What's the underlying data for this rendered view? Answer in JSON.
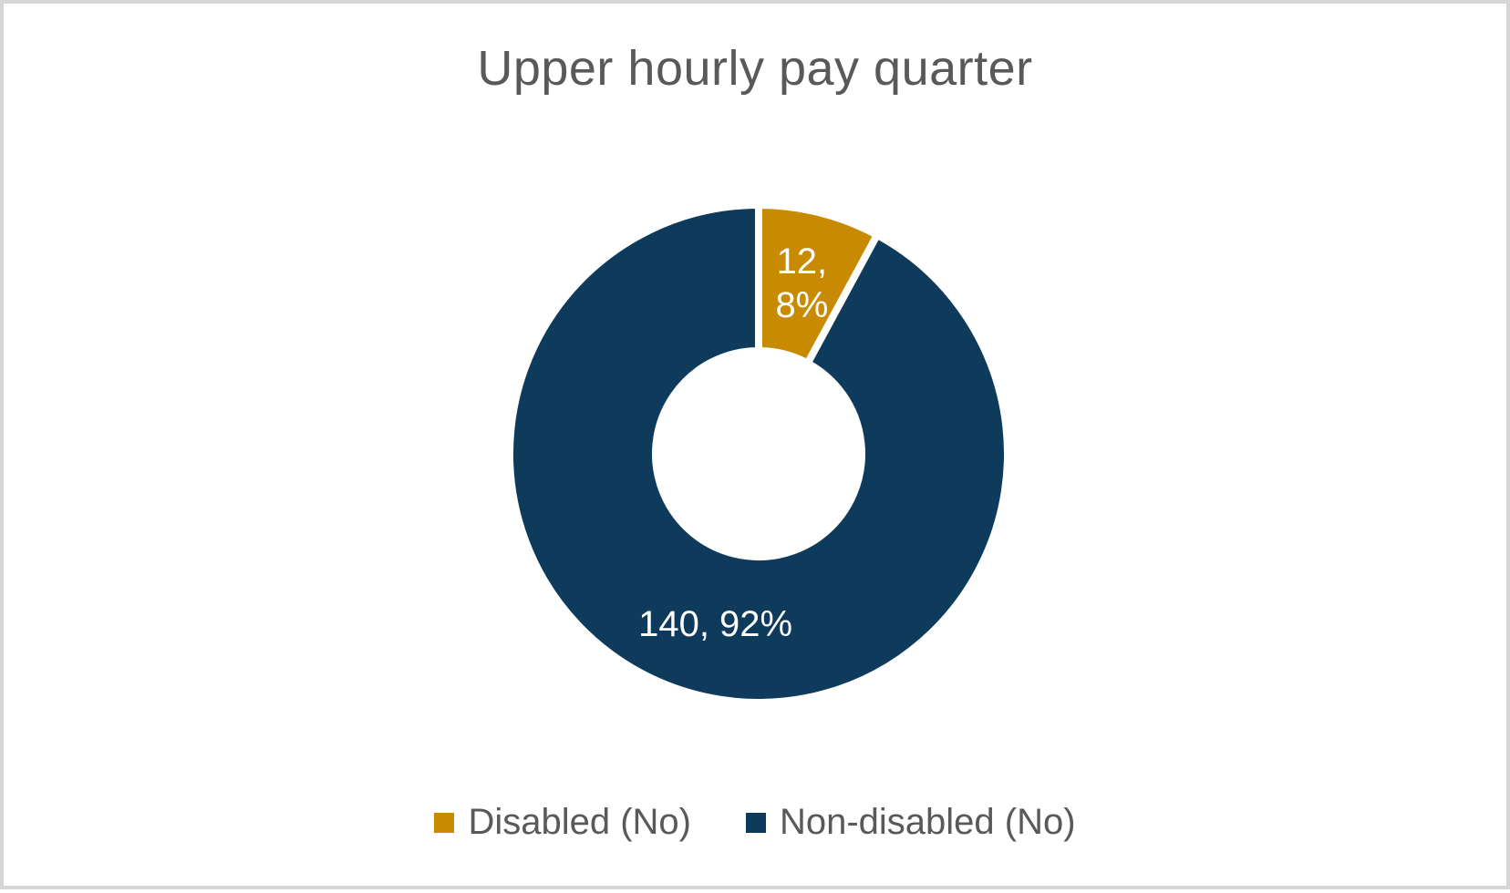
{
  "chart_data": {
    "type": "pie",
    "subtype": "doughnut",
    "title": "Upper hourly pay quarter",
    "categories": [
      "Disabled (No)",
      "Non-disabled (No)"
    ],
    "values": [
      12,
      140
    ],
    "percentages": [
      8,
      92
    ],
    "data_labels": [
      [
        "12,",
        "8%"
      ],
      [
        "140, 92%"
      ]
    ],
    "slice_ids": [
      "disabled",
      "non-disabled"
    ],
    "slice_colors": [
      "#C78A00",
      "#0E3A5C"
    ],
    "slice_border_color": "#FFFFFF",
    "start_angle_deg": 0,
    "direction": "clockwise",
    "legend_position": "bottom",
    "legend": [
      {
        "label": "Disabled (No)",
        "color": "#C78A00"
      },
      {
        "label": "Non-disabled (No)",
        "color": "#0E3A5C"
      }
    ],
    "title_color": "#595959",
    "legend_text_color": "#595959",
    "label_text_color": "#FFFFFF"
  },
  "frame": {
    "border_color": "#D6D6D6",
    "background_color": "#FFFFFF"
  }
}
